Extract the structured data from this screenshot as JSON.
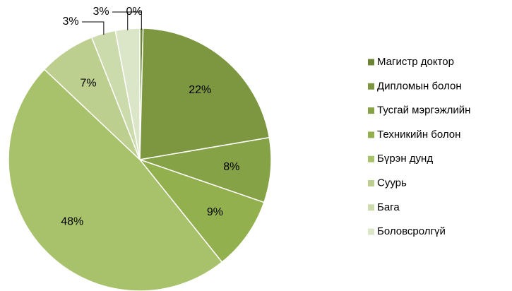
{
  "chart_data": {
    "type": "pie",
    "categories": [
      "Магистр доктор",
      "Дипломын болон",
      "Тусгай мэргэжлийн",
      "Техникийн болон",
      "Бүрэн дунд",
      "Суурь",
      "Бага",
      "Боловсролгүй"
    ],
    "values": [
      0.4,
      22,
      8,
      9,
      48,
      7,
      3,
      3
    ],
    "value_labels": [
      "0%",
      "22%",
      "8%",
      "9%",
      "48%",
      "7%",
      "3%",
      "3%"
    ],
    "colors": [
      "#6b8535",
      "#7c973f",
      "#86a247",
      "#93b04f",
      "#a7c26a",
      "#bccf8e",
      "#cbdbab",
      "#dbe5c8"
    ],
    "legend": "right"
  }
}
